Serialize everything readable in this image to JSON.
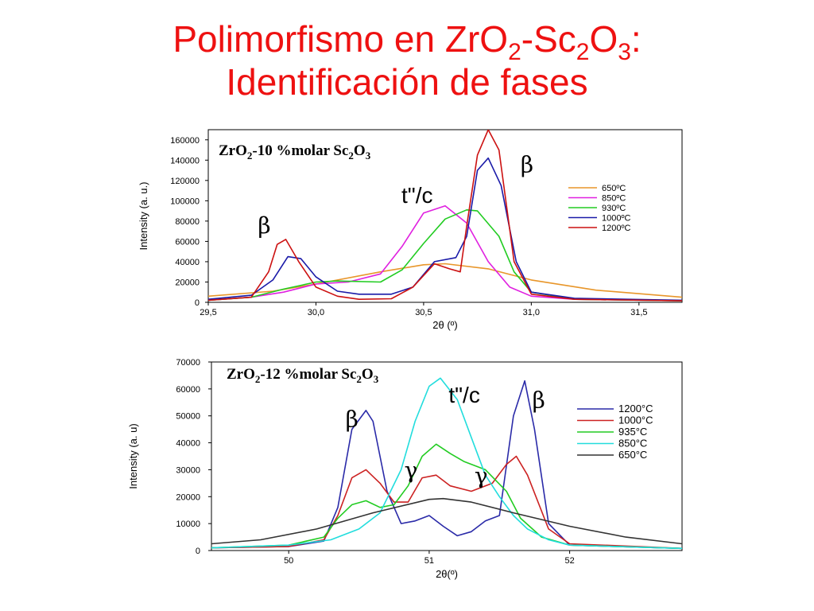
{
  "slide": {
    "title_parts": [
      "Polimorfismo en ZrO",
      "2",
      "-Sc",
      "2",
      "O",
      "3",
      ":"
    ],
    "title_line2": "Identificación de fases"
  },
  "chart_data": [
    {
      "type": "line",
      "title_parts": [
        "ZrO",
        "2",
        "-10 %molar Sc",
        "2",
        "O",
        "3"
      ],
      "xlabel": "2θ (º)",
      "ylabel": "Intensity (a. u.)",
      "xlim": [
        29.5,
        31.7
      ],
      "ylim": [
        0,
        170000
      ],
      "xticks": [
        29.5,
        30.0,
        30.5,
        31.0,
        31.5
      ],
      "xtick_labels": [
        "29,5",
        "30,0",
        "30,5",
        "31,0",
        "31,5"
      ],
      "yticks": [
        0,
        20000,
        40000,
        60000,
        80000,
        100000,
        120000,
        140000,
        160000
      ],
      "ytick_labels": [
        "0",
        "20000",
        "40000",
        "60000",
        "80000",
        "100000",
        "120000",
        "140000",
        "160000"
      ],
      "legend": "right",
      "series": [
        {
          "name": "650ºC",
          "color": "#e8962a",
          "x": [
            29.5,
            29.8,
            30.0,
            30.3,
            30.5,
            30.6,
            30.8,
            31.0,
            31.3,
            31.7
          ],
          "y": [
            6000,
            11000,
            18000,
            30000,
            37000,
            38000,
            33000,
            22000,
            12000,
            5000
          ]
        },
        {
          "name": "850ºC",
          "color": "#e020e0",
          "x": [
            29.5,
            29.7,
            29.85,
            30.0,
            30.15,
            30.3,
            30.4,
            30.5,
            30.6,
            30.7,
            30.8,
            30.9,
            31.0,
            31.2,
            31.7
          ],
          "y": [
            2000,
            5000,
            10000,
            18000,
            20000,
            28000,
            55000,
            88000,
            95000,
            78000,
            40000,
            15000,
            6000,
            3000,
            1500
          ]
        },
        {
          "name": "930ºC",
          "color": "#22cc22",
          "x": [
            29.5,
            29.7,
            29.85,
            30.0,
            30.1,
            30.3,
            30.4,
            30.5,
            30.6,
            30.7,
            30.75,
            30.85,
            30.92,
            31.0,
            31.2,
            31.7
          ],
          "y": [
            2000,
            5000,
            13000,
            20000,
            21000,
            20000,
            32000,
            58000,
            82000,
            91000,
            90000,
            65000,
            30000,
            10000,
            3000,
            1500
          ]
        },
        {
          "name": "1000ºC",
          "color": "#1a1aa8",
          "x": [
            29.5,
            29.7,
            29.8,
            29.87,
            29.93,
            30.0,
            30.1,
            30.2,
            30.35,
            30.45,
            30.55,
            30.65,
            30.7,
            30.75,
            30.8,
            30.86,
            30.93,
            31.0,
            31.2,
            31.7
          ],
          "y": [
            3000,
            7000,
            22000,
            45000,
            43000,
            25000,
            11000,
            8000,
            8000,
            15000,
            40000,
            44000,
            65000,
            130000,
            142000,
            115000,
            40000,
            10000,
            4000,
            2000
          ]
        },
        {
          "name": "1200ºC",
          "color": "#cc1111",
          "x": [
            29.5,
            29.7,
            29.78,
            29.82,
            29.86,
            29.92,
            30.0,
            30.1,
            30.2,
            30.35,
            30.45,
            30.55,
            30.62,
            30.67,
            30.7,
            30.75,
            30.8,
            30.85,
            30.92,
            31.0,
            31.2,
            31.7
          ],
          "y": [
            2000,
            5000,
            30000,
            57000,
            62000,
            40000,
            15000,
            6000,
            3000,
            3500,
            15000,
            38000,
            33000,
            30000,
            75000,
            145000,
            170000,
            150000,
            40000,
            8000,
            3000,
            1500
          ]
        }
      ],
      "annotations": [
        {
          "text": "β",
          "x": 29.76,
          "y": 68000
        },
        {
          "text": "t\"/c",
          "x": 30.47,
          "y": 98000
        },
        {
          "text": "β",
          "x": 30.98,
          "y": 128000
        }
      ]
    },
    {
      "type": "line",
      "title_parts": [
        "ZrO",
        "2",
        "-12 %molar Sc",
        "2",
        "O",
        "3"
      ],
      "xlabel": "2θ(º)",
      "ylabel": "Intensity (a. u)",
      "xlim": [
        49.45,
        52.8
      ],
      "ylim": [
        0,
        70000
      ],
      "xticks": [
        50,
        51,
        52
      ],
      "xtick_labels": [
        "50",
        "51",
        "52"
      ],
      "yticks": [
        0,
        10000,
        20000,
        30000,
        40000,
        50000,
        60000,
        70000
      ],
      "ytick_labels": [
        "0",
        "10000",
        "20000",
        "30000",
        "40000",
        "50000",
        "60000",
        "70000"
      ],
      "legend": "right",
      "series": [
        {
          "name": "1200°C",
          "color": "#2a2aa8",
          "x": [
            49.45,
            50.0,
            50.25,
            50.35,
            50.45,
            50.55,
            50.6,
            50.7,
            50.8,
            50.9,
            51.0,
            51.1,
            51.2,
            51.3,
            51.4,
            51.5,
            51.6,
            51.68,
            51.75,
            51.85,
            52.0,
            52.8
          ],
          "y": [
            1000,
            1500,
            3500,
            16000,
            45000,
            52000,
            48000,
            22000,
            10000,
            11000,
            13000,
            9000,
            5500,
            7000,
            11000,
            13000,
            50000,
            63000,
            45000,
            10000,
            2000,
            800
          ]
        },
        {
          "name": "1000°C",
          "color": "#cc2222",
          "x": [
            49.45,
            50.0,
            50.25,
            50.35,
            50.45,
            50.55,
            50.65,
            50.75,
            50.85,
            50.95,
            51.05,
            51.15,
            51.3,
            51.45,
            51.55,
            51.62,
            51.7,
            51.85,
            52.0,
            52.8
          ],
          "y": [
            1000,
            1500,
            4000,
            13000,
            27000,
            30000,
            25000,
            18000,
            18000,
            27000,
            28000,
            24000,
            22000,
            25000,
            32000,
            35000,
            28000,
            8000,
            2500,
            800
          ]
        },
        {
          "name": "935°C",
          "color": "#22cc22",
          "x": [
            49.45,
            50.0,
            50.25,
            50.35,
            50.45,
            50.55,
            50.65,
            50.75,
            50.85,
            50.95,
            51.05,
            51.15,
            51.25,
            51.4,
            51.55,
            51.65,
            51.8,
            52.0,
            52.8
          ],
          "y": [
            1000,
            2000,
            5000,
            12000,
            17000,
            18500,
            16000,
            17000,
            24000,
            35000,
            39500,
            36000,
            33000,
            30000,
            22000,
            12000,
            5000,
            2000,
            800
          ]
        },
        {
          "name": "850°C",
          "color": "#22dddd",
          "x": [
            49.45,
            50.0,
            50.3,
            50.5,
            50.65,
            50.8,
            50.9,
            51.0,
            51.08,
            51.2,
            51.3,
            51.4,
            51.5,
            51.6,
            51.7,
            51.85,
            52.0,
            52.8
          ],
          "y": [
            1000,
            2000,
            4000,
            8000,
            14000,
            30000,
            48000,
            61000,
            64000,
            56000,
            42000,
            28000,
            20000,
            13000,
            8000,
            4000,
            2000,
            800
          ]
        },
        {
          "name": "650°C",
          "color": "#333333",
          "x": [
            49.45,
            49.8,
            50.2,
            50.6,
            51.0,
            51.1,
            51.3,
            51.6,
            52.0,
            52.4,
            52.8
          ],
          "y": [
            2500,
            4000,
            8000,
            14000,
            19000,
            19300,
            18000,
            14000,
            9000,
            5000,
            2500
          ]
        }
      ],
      "annotations": [
        {
          "text": "β",
          "x": 50.45,
          "y": 46000
        },
        {
          "text": "γ",
          "x": 50.87,
          "y": 27000
        },
        {
          "text": "t\"/c",
          "x": 51.25,
          "y": 55000
        },
        {
          "text": "β",
          "x": 51.78,
          "y": 53000
        },
        {
          "text": "γ",
          "x": 51.37,
          "y": 25000
        }
      ]
    }
  ]
}
